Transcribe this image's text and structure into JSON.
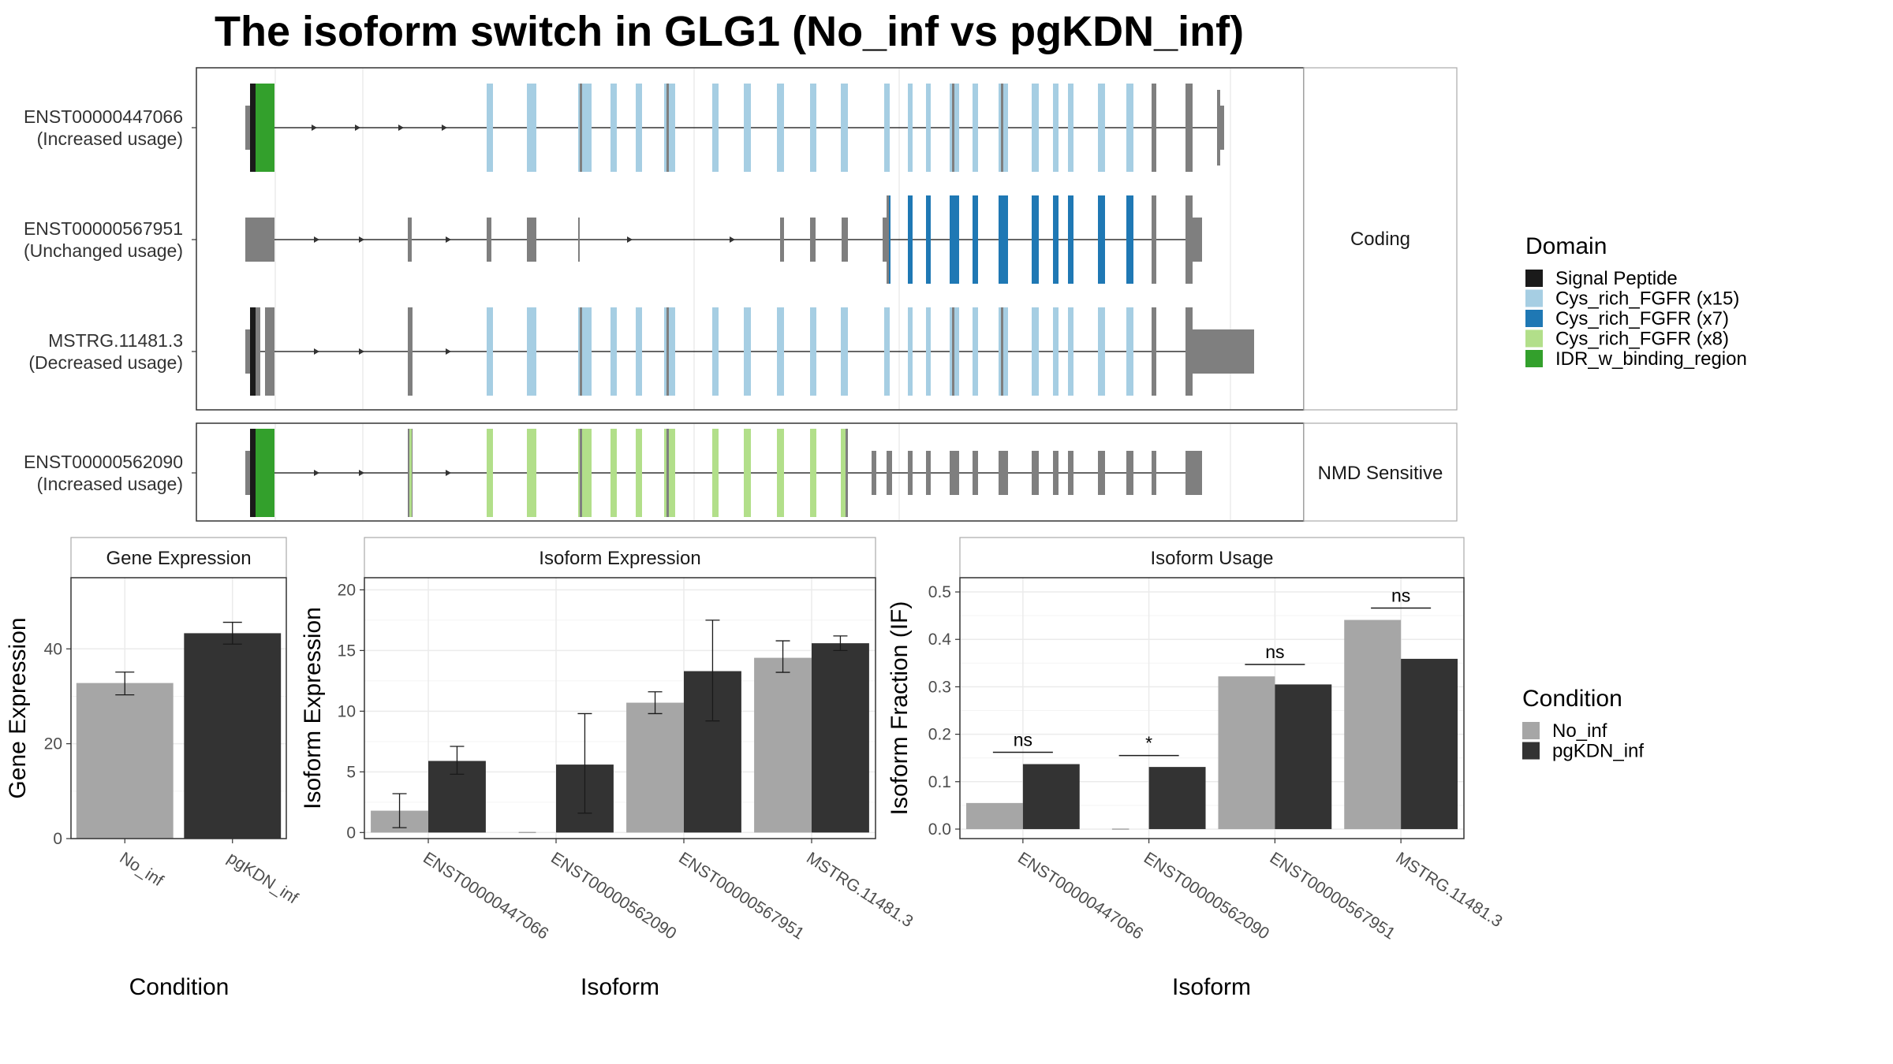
{
  "title": "The isoform switch in GLG1 (No_inf vs pgKDN_inf)",
  "colors": {
    "signal": "#1a1a1a",
    "cys15": "#a6cee3",
    "cys7": "#1f78b4",
    "cys8": "#b2df8a",
    "idr": "#33a02c",
    "exon": "#7f7f7f",
    "no_inf": "#a6a6a6",
    "pgkdn_inf": "#333333"
  },
  "structure": {
    "coding_strip": "Coding",
    "nmd_strip": "NMD Sensitive",
    "transcripts": [
      {
        "id": "ENST00000447066",
        "usage": "(Increased usage)",
        "group": "coding"
      },
      {
        "id": "ENST00000567951",
        "usage": "(Unchanged usage)",
        "group": "coding"
      },
      {
        "id": "MSTRG.11481.3",
        "usage": "(Decreased usage)",
        "group": "coding"
      },
      {
        "id": "ENST00000562090",
        "usage": "(Increased usage)",
        "group": "nmd"
      }
    ]
  },
  "legend_domain": {
    "title": "Domain",
    "items": [
      {
        "label": "Signal Peptide",
        "color": "#1a1a1a"
      },
      {
        "label": "Cys_rich_FGFR (x15)",
        "color": "#a6cee3"
      },
      {
        "label": "Cys_rich_FGFR (x7)",
        "color": "#1f78b4"
      },
      {
        "label": "Cys_rich_FGFR (x8)",
        "color": "#b2df8a"
      },
      {
        "label": "IDR_w_binding_region",
        "color": "#33a02c"
      }
    ]
  },
  "legend_condition": {
    "title": "Condition",
    "items": [
      {
        "label": "No_inf",
        "color": "#a6a6a6"
      },
      {
        "label": "pgKDN_inf",
        "color": "#333333"
      }
    ]
  },
  "chart_data": [
    {
      "type": "bar",
      "panel": "Gene Expression",
      "xlabel": "Condition",
      "ylabel": "Gene Expression",
      "categories": [
        "No_inf",
        "pgKDN_inf"
      ],
      "values": [
        32.8,
        43.3
      ],
      "errors": [
        [
          30.3,
          35.1
        ],
        [
          41.0,
          45.6
        ]
      ],
      "ylim": [
        0,
        55
      ],
      "yticks": [
        0,
        20,
        40
      ]
    },
    {
      "type": "bar",
      "panel": "Isoform Expression",
      "xlabel": "Isoform",
      "ylabel": "Isoform Expression",
      "categories": [
        "ENST00000447066",
        "ENST00000562090",
        "ENST00000567951",
        "MSTRG.11481.3"
      ],
      "series": [
        {
          "name": "No_inf",
          "values": [
            1.8,
            0.0,
            10.7,
            14.4
          ],
          "errors": [
            [
              0.4,
              3.2
            ],
            [
              0.0,
              0.0
            ],
            [
              9.8,
              11.6
            ],
            [
              13.2,
              15.8
            ]
          ]
        },
        {
          "name": "pgKDN_inf",
          "values": [
            5.9,
            5.6,
            13.3,
            15.6
          ],
          "errors": [
            [
              4.8,
              7.1
            ],
            [
              1.6,
              9.8
            ],
            [
              9.2,
              17.5
            ],
            [
              15.0,
              16.2
            ]
          ]
        }
      ],
      "ylim": [
        -0.5,
        21
      ],
      "yticks": [
        0,
        5,
        10,
        15,
        20
      ]
    },
    {
      "type": "bar",
      "panel": "Isoform Usage",
      "xlabel": "Isoform",
      "ylabel": "Isoform Fraction (IF)",
      "categories": [
        "ENST00000447066",
        "ENST00000562090",
        "ENST00000567951",
        "MSTRG.11481.3"
      ],
      "series": [
        {
          "name": "No_inf",
          "values": [
            0.055,
            0.0,
            0.322,
            0.441
          ]
        },
        {
          "name": "pgKDN_inf",
          "values": [
            0.137,
            0.131,
            0.305,
            0.359
          ]
        }
      ],
      "significance": [
        "ns",
        "*",
        "ns",
        "ns"
      ],
      "significance_y": [
        0.162,
        0.155,
        0.347,
        0.466
      ],
      "ylim": [
        -0.02,
        0.53
      ],
      "yticks": [
        0.0,
        0.1,
        0.2,
        0.3,
        0.4,
        0.5
      ],
      "ytick_labels": [
        "0.0",
        "0.1",
        "0.2",
        "0.3",
        "0.4",
        "0.5"
      ]
    }
  ]
}
